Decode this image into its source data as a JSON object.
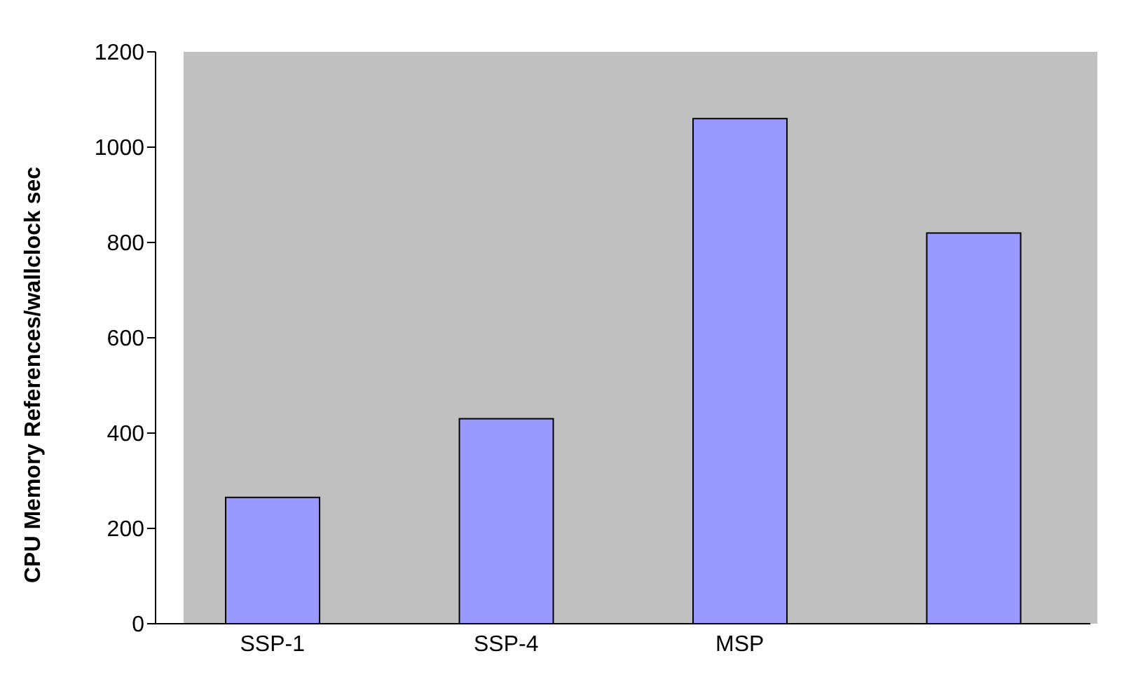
{
  "chart_data": {
    "type": "bar",
    "ylabel": "CPU Memory References/wallclock sec",
    "categories": [
      "SSP-1",
      "SSP-4",
      "MSP",
      null
    ],
    "values": [
      265,
      430,
      1060,
      820
    ],
    "color": "#9999ff",
    "ylim": [
      0,
      1200
    ],
    "yticks": [
      0,
      200,
      400,
      600,
      800,
      1000,
      1200
    ],
    "grid": false
  }
}
